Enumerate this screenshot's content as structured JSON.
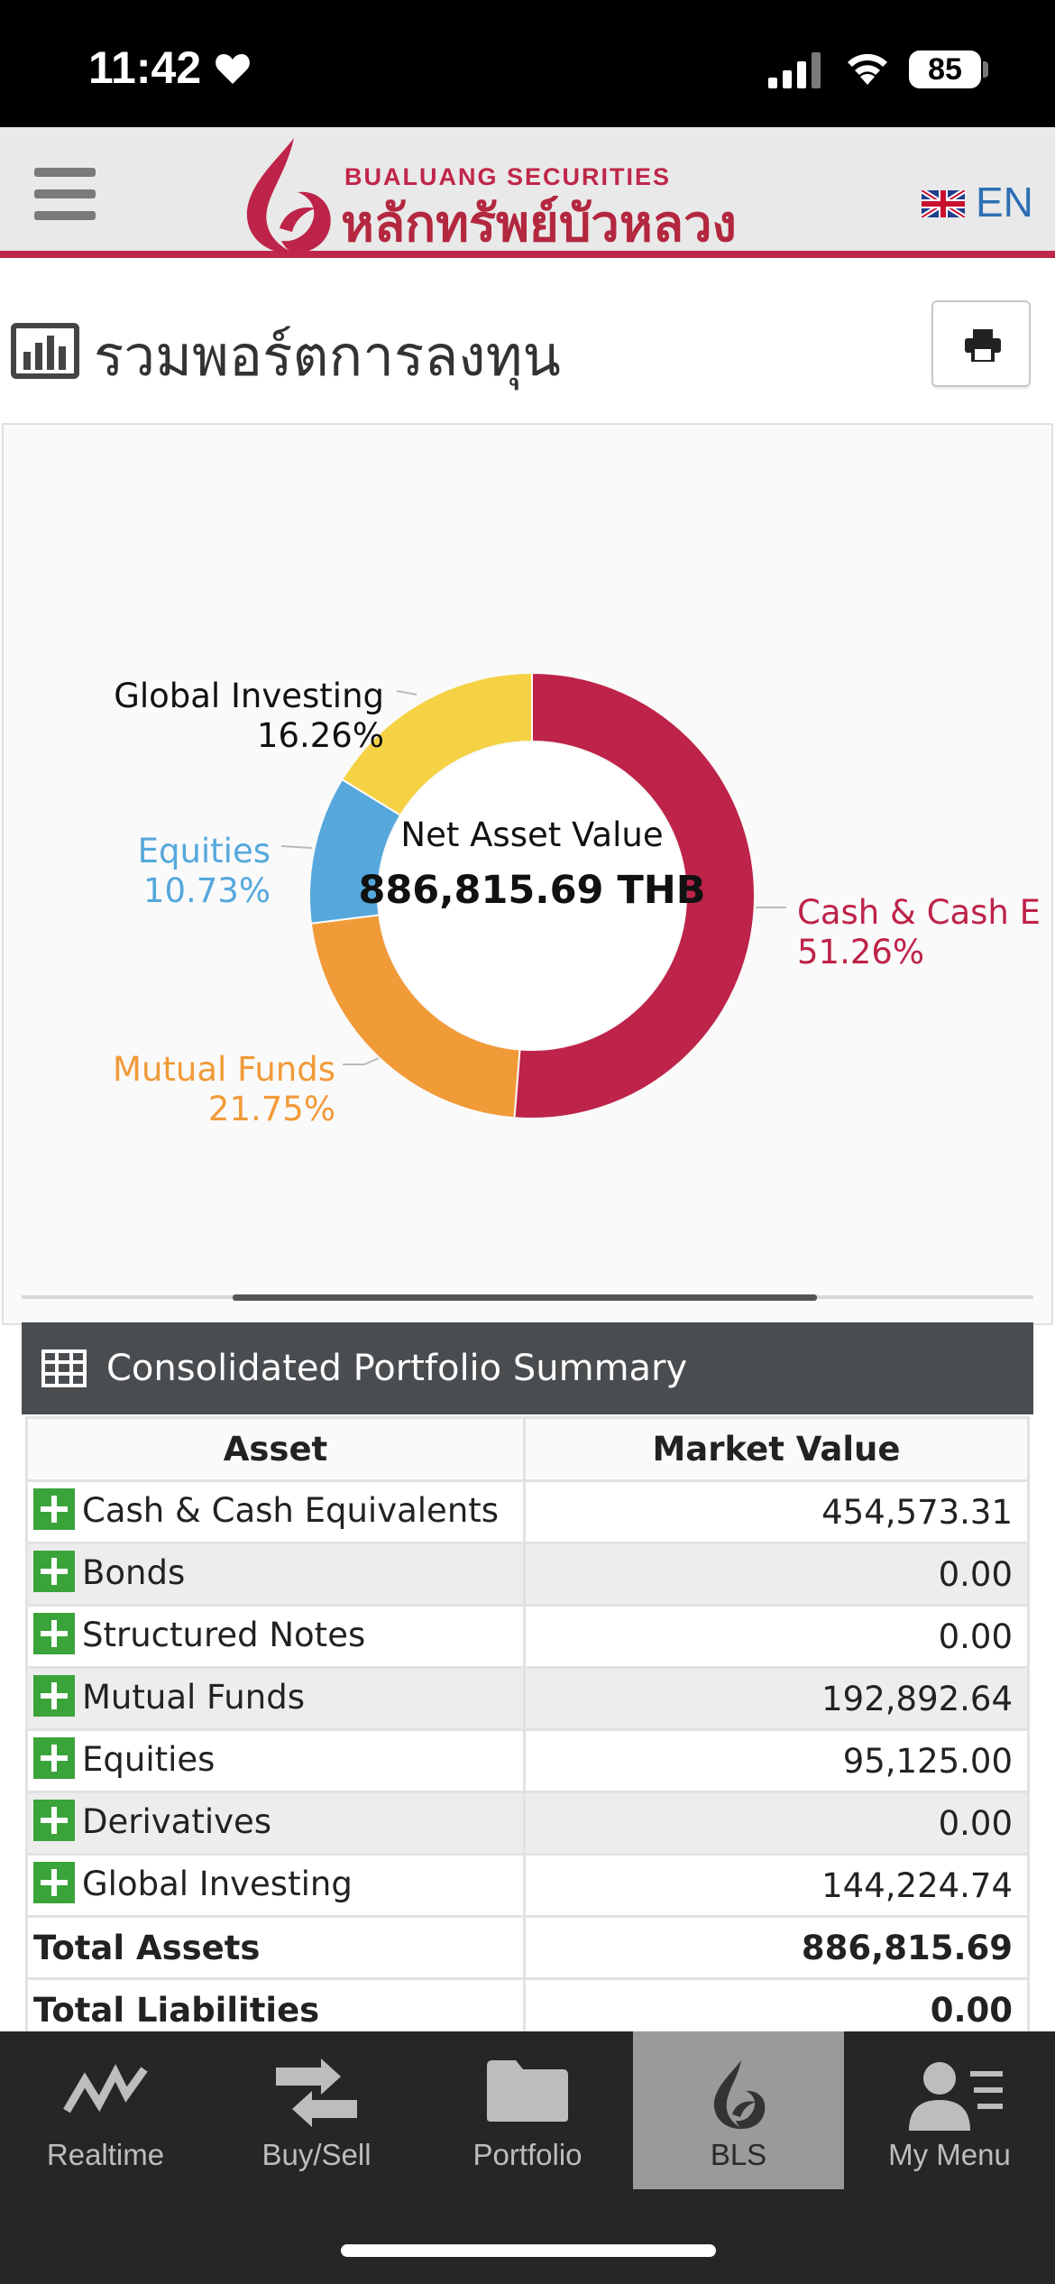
{
  "status_bar": {
    "time": "11:42",
    "battery": "85"
  },
  "header": {
    "logo_en": "BUALUANG SECURITIES",
    "logo_th": "หลักทรัพย์บัวหลวง",
    "language": "EN"
  },
  "page": {
    "title": "รวมพอร์ตการลงทุน"
  },
  "chart_data": {
    "type": "pie",
    "center_label": "Net Asset Value",
    "center_value": "886,815.69 THB",
    "slices": [
      {
        "label": "Cash & Cash Equivalents",
        "display_label": "Cash & Cash E",
        "percent_text": "51.26%",
        "value": 51.26,
        "color": "#be2349"
      },
      {
        "label": "Mutual Funds",
        "display_label": "Mutual Funds",
        "percent_text": "21.75%",
        "value": 21.75,
        "color": "#f19a38"
      },
      {
        "label": "Equities",
        "display_label": "Equities",
        "percent_text": "10.73%",
        "value": 10.73,
        "color": "#56a8dc"
      },
      {
        "label": "Global Investing",
        "display_label": "Global Investing",
        "percent_text": "16.26%",
        "value": 16.26,
        "color": "#f5d244"
      }
    ]
  },
  "summary": {
    "title": "Consolidated Portfolio Summary",
    "columns": [
      "Asset",
      "Market Value"
    ],
    "rows": [
      {
        "asset": "Cash & Cash Equivalents",
        "value": "454,573.31"
      },
      {
        "asset": "Bonds",
        "value": "0.00"
      },
      {
        "asset": "Structured Notes",
        "value": "0.00"
      },
      {
        "asset": "Mutual Funds",
        "value": "192,892.64"
      },
      {
        "asset": "Equities",
        "value": "95,125.00"
      },
      {
        "asset": "Derivatives",
        "value": "0.00"
      },
      {
        "asset": "Global Investing",
        "value": "144,224.74"
      }
    ],
    "totals": [
      {
        "label": "Total Assets",
        "value": "886,815.69"
      },
      {
        "label": "Total Liabilities",
        "value": "0.00"
      }
    ]
  },
  "tabbar": {
    "tabs": [
      {
        "label": "Realtime",
        "icon": "realtime-chart-icon"
      },
      {
        "label": "Buy/Sell",
        "icon": "buy-sell-arrows-icon"
      },
      {
        "label": "Portfolio",
        "icon": "folder-icon"
      },
      {
        "label": "BLS",
        "icon": "bls-logo-icon",
        "active": true
      },
      {
        "label": "My Menu",
        "icon": "user-menu-icon"
      }
    ]
  }
}
